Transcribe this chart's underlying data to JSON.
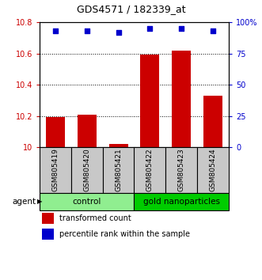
{
  "title": "GDS4571 / 182339_at",
  "samples": [
    "GSM805419",
    "GSM805420",
    "GSM805421",
    "GSM805422",
    "GSM805423",
    "GSM805424"
  ],
  "bar_values": [
    10.19,
    10.21,
    10.02,
    10.59,
    10.62,
    10.33
  ],
  "percentile_values": [
    93,
    93,
    92,
    95,
    95,
    93
  ],
  "bar_color": "#cc0000",
  "dot_color": "#0000cc",
  "ylim_left": [
    10.0,
    10.8
  ],
  "ylim_right": [
    0,
    100
  ],
  "yticks_left": [
    10.0,
    10.2,
    10.4,
    10.6,
    10.8
  ],
  "ytick_labels_left": [
    "10",
    "10.2",
    "10.4",
    "10.6",
    "10.8"
  ],
  "yticks_right": [
    0,
    25,
    50,
    75,
    100
  ],
  "ytick_labels_right": [
    "0",
    "25",
    "50",
    "75",
    "100%"
  ],
  "groups": [
    {
      "label": "control",
      "indices": [
        0,
        1,
        2
      ],
      "color": "#90ee90"
    },
    {
      "label": "gold nanoparticles",
      "indices": [
        3,
        4,
        5
      ],
      "color": "#00cc00"
    }
  ],
  "legend_items": [
    {
      "label": "transformed count",
      "color": "#cc0000"
    },
    {
      "label": "percentile rank within the sample",
      "color": "#0000cc"
    }
  ],
  "bar_bottom": 10.0,
  "sample_box_color": "#c8c8c8",
  "bar_width": 0.6
}
